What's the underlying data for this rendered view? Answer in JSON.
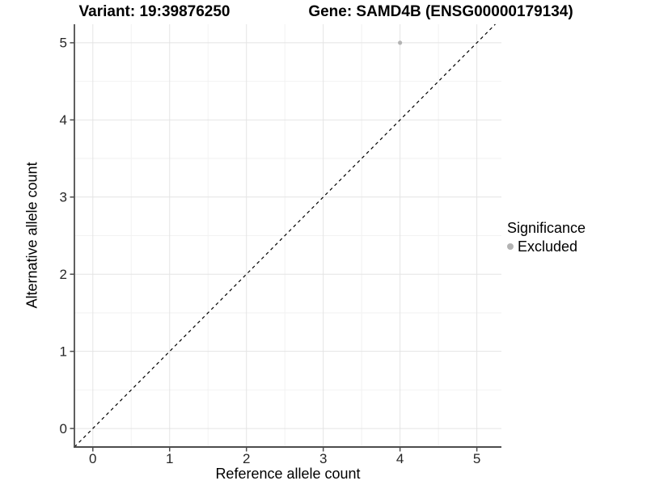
{
  "chart_data": {
    "type": "scatter",
    "title_left": "Variant: 19:39876250",
    "title_right": "Gene: SAMD4B (ENSG00000179134)",
    "xlabel": "Reference allele count",
    "ylabel": "Alternative allele count",
    "xlim": [
      -0.24,
      5.32
    ],
    "ylim": [
      -0.24,
      5.24
    ],
    "x_ticks": [
      0,
      1,
      2,
      3,
      4,
      5
    ],
    "y_ticks": [
      0,
      1,
      2,
      3,
      4,
      5
    ],
    "grid": {
      "major": true,
      "minor": true
    },
    "points": [
      {
        "x": 4,
        "y": 5,
        "series": "Excluded"
      }
    ],
    "reference_line": {
      "style": "dashed",
      "equation": "y = x"
    },
    "legend": {
      "title": "Significance",
      "position": "right",
      "items": [
        {
          "label": "Excluded",
          "color": "#b3b3b3"
        }
      ]
    },
    "colors": {
      "point": "#b3b3b3",
      "grid_major": "#e4e4e4",
      "grid_minor": "#f2f2f2",
      "axis_line": "#4d4d4d",
      "tick_text": "#262626",
      "reference_line": "#000000"
    }
  }
}
